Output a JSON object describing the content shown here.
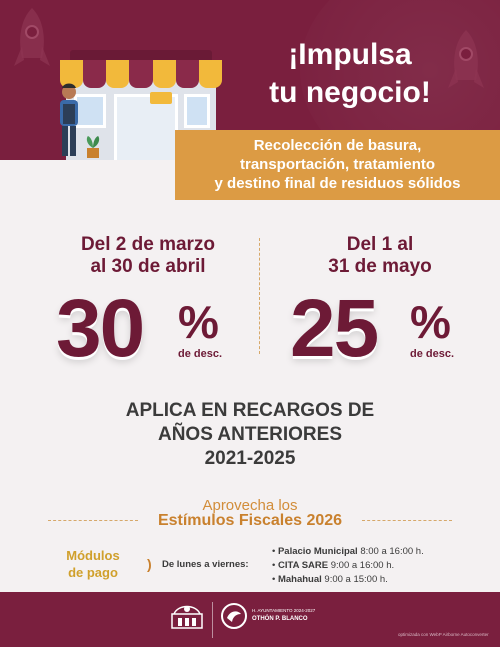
{
  "header": {
    "title_line1": "¡Impulsa",
    "title_line2": "tu negocio!",
    "service_line1": "Recolección de basura,",
    "service_line2": "transportación, tratamiento",
    "service_line3": "y destino final de residuos sólidos"
  },
  "discounts": [
    {
      "period_line1": "Del 2 de marzo",
      "period_line2": "al 30 de abril",
      "number": "30",
      "symbol": "%",
      "desc": "de desc.",
      "value_percent": 30
    },
    {
      "period_line1": "Del 1 al",
      "period_line2": "31 de mayo",
      "number": "25",
      "symbol": "%",
      "desc": "de desc.",
      "value_percent": 25
    }
  ],
  "recargos": {
    "line1": "APLICA EN RECARGOS DE",
    "line2": "AÑOS ANTERIORES",
    "line3": "2021-2025"
  },
  "estimulos": {
    "lead": "Aprovecha los",
    "title": "Estímulos Fiscales 2026"
  },
  "payment": {
    "modules_line1": "Módulos",
    "modules_line2": "de pago",
    "arrow": ")",
    "days": "De lunes a viernes:",
    "locations": [
      {
        "bullet": "•",
        "name": "Palacio Municipal",
        "hours": "8:00 a 16:00 h."
      },
      {
        "bullet": "•",
        "name": "CITA SARE",
        "hours": "9:00 a 16:00 h."
      },
      {
        "bullet": "•",
        "name": "Mahahual",
        "hours": "9:00 a 15:00 h."
      }
    ]
  },
  "footer": {
    "ayuntamiento": "H. AYUNTAMIENTO 2024-2027",
    "municipio": "OTHÓN P. BLANCO",
    "optimized": "optimizada con WebP Airborne Autoconverter"
  },
  "colors": {
    "brand": "#7a1f3e",
    "accent": "#dc9b44",
    "text_dark": "#6d1a36"
  },
  "icons": [
    "rocket-icon",
    "storefront-illustration",
    "shopkeeper-illustration",
    "plant-icon",
    "state-seal-icon",
    "municipal-logo-icon"
  ]
}
